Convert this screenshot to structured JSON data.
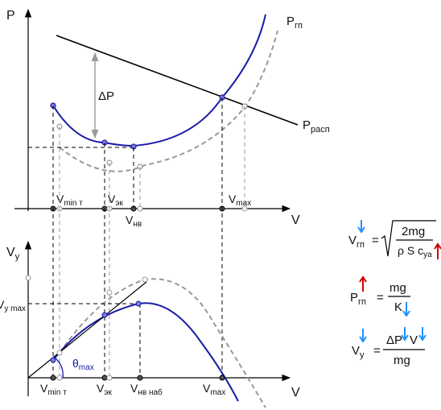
{
  "top_graph": {
    "y_axis_label": "P",
    "x_axis_label": "V",
    "curve_label_main": "P",
    "curve_label_main_sub": "гп",
    "line_label_main": "P",
    "line_label_sub": "расп",
    "delta_label": "ΔP",
    "tick_vmin_main": "V",
    "tick_vmin_sub": "min т",
    "tick_vek_main": "V",
    "tick_vek_sub": "эк",
    "tick_vnv_main": "V",
    "tick_vnv_sub": "нв",
    "tick_vmax_main": "V",
    "tick_vmax_sub": "max"
  },
  "bottom_graph": {
    "y_axis_label_main": "V",
    "y_axis_label_sub": "y",
    "x_axis_label": "V",
    "vy_max_main": "V",
    "vy_max_sub": "y max",
    "theta_main": "θ",
    "theta_sub": "max",
    "tick_vmin_main": "V",
    "tick_vmin_sub": "min т",
    "tick_vek_main": "V",
    "tick_vek_sub": "эк",
    "tick_vnv_main": "V",
    "tick_vnv_sub": "нв наб",
    "tick_vmax_main": "V",
    "tick_vmax_sub": "max"
  },
  "formulas": {
    "f1_lhs_main": "V",
    "f1_lhs_sub": "гп",
    "f1_equals": "=",
    "f1_numerator": "2mg",
    "f1_denominator": "ρ S c",
    "f1_denominator_sub": "ya",
    "f2_lhs_main": "P",
    "f2_lhs_sub": "гп",
    "f2_equals": "=",
    "f2_numerator": "mg",
    "f2_denominator": "K",
    "f3_lhs_main": "V",
    "f3_lhs_sub": "y",
    "f3_equals": "=",
    "f3_numerator_a": "ΔP",
    "f3_numerator_b": "V",
    "f3_denominator": "mg"
  },
  "colors": {
    "axis": "#000000",
    "curve_main": "#1a1aa6",
    "curve_dashed": "#999999",
    "arrow_down": "#1e90ff",
    "arrow_up": "#cc0000",
    "theta": "#1a1aa6"
  }
}
